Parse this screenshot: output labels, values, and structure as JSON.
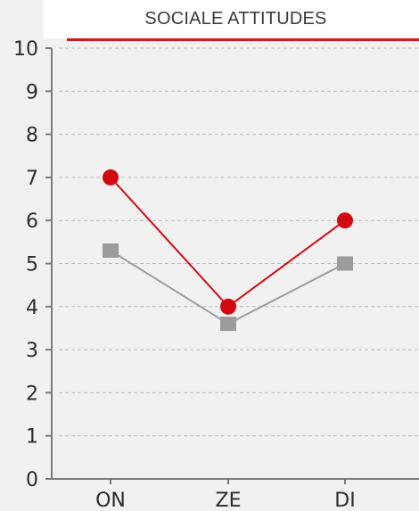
{
  "chart_data": {
    "type": "line",
    "title": "SOCIALE ATTITUDES",
    "categories": [
      "ON",
      "ZE",
      "DI"
    ],
    "ylim": [
      0,
      10
    ],
    "yticks": [
      0,
      1,
      2,
      3,
      4,
      5,
      6,
      7,
      8,
      9,
      10
    ],
    "grid": true,
    "series": [
      {
        "values": [
          7,
          4,
          6
        ],
        "color": "#d10a10",
        "marker": "circle"
      },
      {
        "values": [
          5.3,
          3.6,
          5
        ],
        "color": "#9b9b9b",
        "marker": "square"
      }
    ]
  }
}
